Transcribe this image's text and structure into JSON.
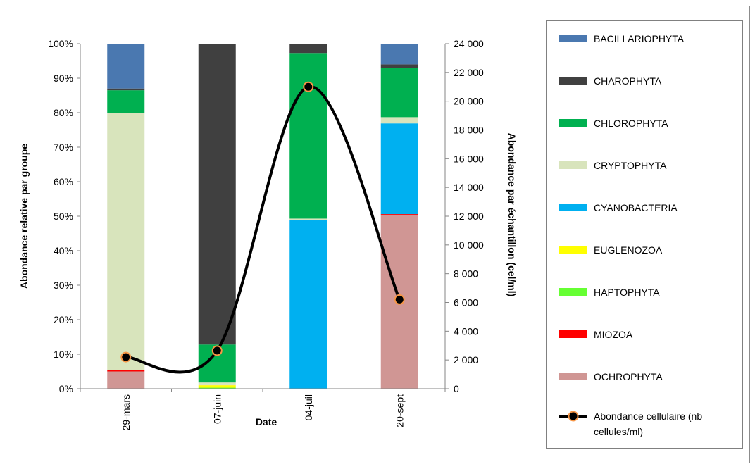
{
  "chart_data": {
    "type": "bar",
    "stacked": true,
    "categories": [
      "29-mars",
      "07-juin",
      "04-juil",
      "20-sept"
    ],
    "xlabel": "Date",
    "ylabel_left": "Abondance relative par groupe",
    "ylabel_right": "Abondance par échantillon (cel/ml)",
    "ylim_left": [
      0,
      100
    ],
    "ylim_right": [
      0,
      24000
    ],
    "yticks_left": [
      "0%",
      "10%",
      "20%",
      "30%",
      "40%",
      "50%",
      "60%",
      "70%",
      "80%",
      "90%",
      "100%"
    ],
    "yticks_right": [
      "0",
      "2 000",
      "4 000",
      "6 000",
      "8 000",
      "10 000",
      "12 000",
      "14 000",
      "16 000",
      "18 000",
      "20 000",
      "22 000",
      "24 000"
    ],
    "series": [
      {
        "name": "OCHROPHYTA",
        "color": "#d09694",
        "values": [
          5,
          0,
          0,
          50.3
        ]
      },
      {
        "name": "MIOZOA",
        "color": "#ff0000",
        "values": [
          0.5,
          0,
          0,
          0.3
        ]
      },
      {
        "name": "HAPTOPHYTA",
        "color": "#66ff33",
        "values": [
          0,
          0.3,
          0,
          0
        ]
      },
      {
        "name": "EUGLENOZOA",
        "color": "#ffff00",
        "values": [
          0,
          0.7,
          0,
          0
        ]
      },
      {
        "name": "CYANOBACTERIA",
        "color": "#00b0f0",
        "values": [
          0,
          0,
          48.8,
          26.3
        ]
      },
      {
        "name": "CRYPTOPHYTA",
        "color": "#d8e4bc",
        "values": [
          74.5,
          0.8,
          0.5,
          1.8
        ]
      },
      {
        "name": "CHLOROPHYTA",
        "color": "#00b050",
        "values": [
          6.5,
          11,
          48,
          14.3
        ]
      },
      {
        "name": "CHAROPHYTA",
        "color": "#404040",
        "values": [
          0.5,
          87.2,
          2.7,
          1
        ]
      },
      {
        "name": "BACILLARIOPHYTA",
        "color": "#4a78b0",
        "values": [
          13,
          0,
          0,
          6
        ]
      }
    ],
    "legend_order": [
      "BACILLARIOPHYTA",
      "CHAROPHYTA",
      "CHLOROPHYTA",
      "CRYPTOPHYTA",
      "CYANOBACTERIA",
      "EUGLENOZOA",
      "HAPTOPHYTA",
      "MIOZOA",
      "OCHROPHYTA"
    ],
    "line_series": {
      "name": "Abondance cellulaire (nb cellules/ml)",
      "legend_lines": [
        "Abondance cellulaire (nb",
        "cellules/ml)"
      ],
      "axis": "right",
      "color": "#000000",
      "marker_fill": "#000000",
      "marker_edge": "#f79646",
      "values": [
        2200,
        2650,
        21000,
        6200
      ]
    },
    "legend_placement": "right",
    "grid": false
  }
}
